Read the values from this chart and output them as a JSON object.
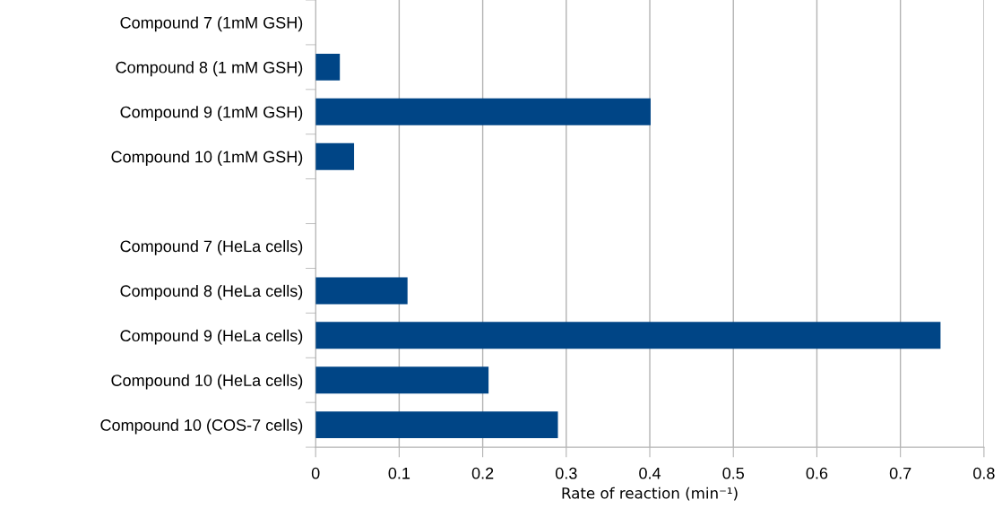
{
  "chart_data": {
    "type": "bar",
    "orientation": "horizontal",
    "categories": [
      "Compound 7 (1mM GSH)",
      "Compound 8 (1 mM GSH)",
      "Compound 9 (1mM GSH)",
      "Compound 10 (1mM GSH)",
      null,
      "Compound 7 (HeLa cells)",
      "Compound 8 (HeLa cells)",
      "Compound 9 (HeLa cells)",
      "Compound 10 (HeLa cells)",
      "Compound 10 (COS-7 cells)"
    ],
    "values": [
      0,
      0.029,
      0.401,
      0.046,
      null,
      0,
      0.11,
      0.748,
      0.207,
      0.29
    ],
    "color": "#004586",
    "xlabel": "Rate of reaction (min⁻¹)",
    "xlim": [
      0,
      0.8
    ],
    "xticks": [
      0,
      0.1,
      0.2,
      0.3,
      0.4,
      0.5,
      0.6,
      0.7,
      0.8
    ],
    "grid": "x",
    "legend": false
  }
}
